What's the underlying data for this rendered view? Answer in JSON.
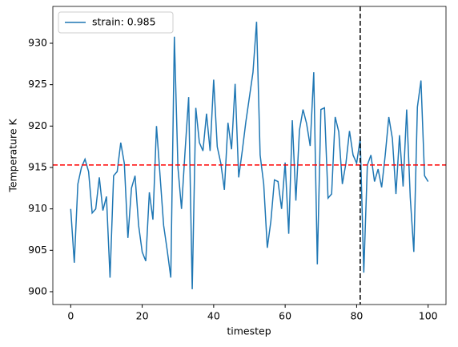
{
  "chart_data": {
    "type": "line",
    "xlabel": "timestep",
    "ylabel": "Temperature K",
    "x": [
      0,
      1,
      2,
      3,
      4,
      5,
      6,
      7,
      8,
      9,
      10,
      11,
      12,
      13,
      14,
      15,
      16,
      17,
      18,
      19,
      20,
      21,
      22,
      23,
      24,
      25,
      26,
      27,
      28,
      29,
      30,
      31,
      32,
      33,
      34,
      35,
      36,
      37,
      38,
      39,
      40,
      41,
      42,
      43,
      44,
      45,
      46,
      47,
      48,
      49,
      50,
      51,
      52,
      53,
      54,
      55,
      56,
      57,
      58,
      59,
      60,
      61,
      62,
      63,
      64,
      65,
      66,
      67,
      68,
      69,
      70,
      71,
      72,
      73,
      74,
      75,
      76,
      77,
      78,
      79,
      80,
      81,
      82,
      83,
      84,
      85,
      86,
      87,
      88,
      89,
      90,
      91,
      92,
      93,
      94,
      95,
      96,
      97,
      98,
      99,
      100
    ],
    "series": [
      {
        "name": "strain: 0.985",
        "color": "#1f77b4",
        "values": [
          910,
          903.5,
          913,
          915,
          916,
          914.5,
          909.5,
          910,
          913.8,
          909.8,
          911.5,
          901.7,
          914,
          914.5,
          918,
          915.5,
          906.5,
          912.5,
          914,
          908,
          904.8,
          903.7,
          912,
          908.7,
          920,
          914,
          908,
          905,
          901.7,
          930.8,
          915,
          910,
          917,
          923.5,
          900.3,
          922.2,
          918,
          917,
          921.5,
          917,
          925.6,
          917.5,
          915.5,
          912.3,
          920.4,
          917.2,
          925.1,
          913.8,
          917,
          920.5,
          923.5,
          926.5,
          932.6,
          916.5,
          913,
          905.3,
          908.5,
          913.5,
          913.3,
          910,
          915.6,
          907,
          920.7,
          911,
          919.5,
          922,
          920.3,
          917.6,
          926.5,
          903.3,
          922,
          922.2,
          911.3,
          911.8,
          921.1,
          919.3,
          913,
          915.5,
          919.4,
          916.5,
          915.5,
          918.5,
          902.3,
          915.3,
          916.5,
          913.3,
          914.8,
          912.6,
          916.5,
          921.1,
          918.5,
          911.8,
          918.9,
          912.7,
          922,
          911.4,
          904.8,
          922.3,
          925.5,
          914,
          913.3
        ]
      }
    ],
    "hline": {
      "value": 915.3,
      "color": "#ff0000"
    },
    "vline": {
      "value": 81,
      "color": "#000000"
    },
    "xlim": [
      -5,
      105
    ],
    "xticks": [
      0,
      20,
      40,
      60,
      80,
      100
    ],
    "ylim": [
      898.45,
      934.45
    ],
    "yticks": [
      900,
      905,
      910,
      915,
      920,
      925,
      930
    ],
    "legend": "upper left"
  }
}
